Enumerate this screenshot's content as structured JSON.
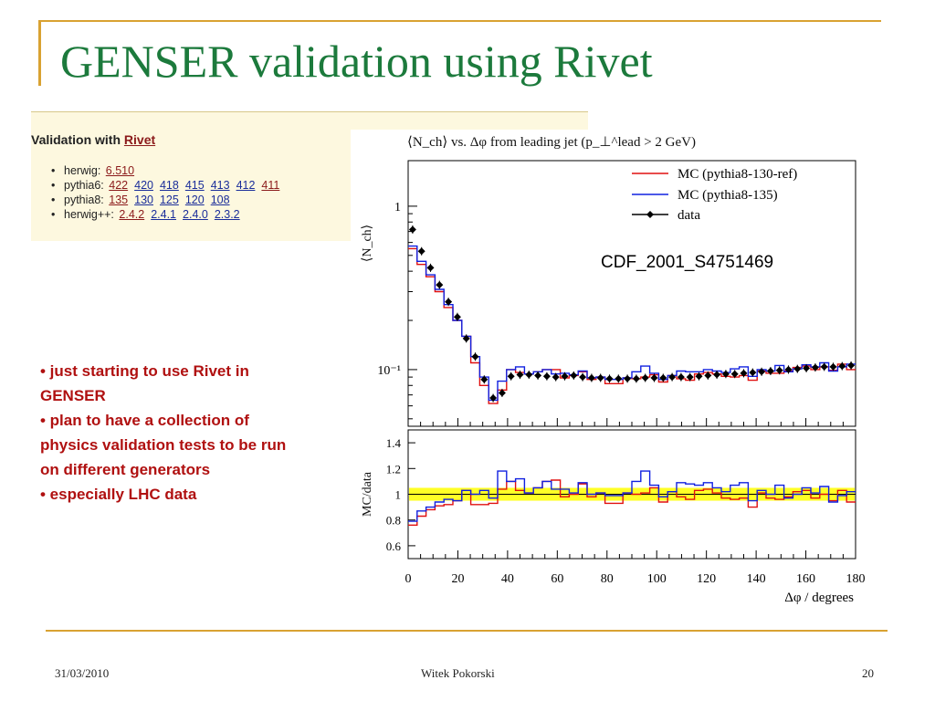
{
  "slide": {
    "title": "GENSER validation using Rivet",
    "accent_color": "#d9a232",
    "title_color": "#1c7a3c"
  },
  "rivet_panel": {
    "heading_prefix": "Validation with ",
    "heading_link": "Rivet",
    "rows": [
      {
        "label": "herwig:",
        "versions": [
          {
            "v": "6.510",
            "visited": true
          }
        ]
      },
      {
        "label": "pythia6:",
        "versions": [
          {
            "v": "422",
            "visited": true
          },
          {
            "v": "420",
            "visited": false
          },
          {
            "v": "418",
            "visited": false
          },
          {
            "v": "415",
            "visited": false
          },
          {
            "v": "413",
            "visited": false
          },
          {
            "v": "412",
            "visited": false
          },
          {
            "v": "411",
            "visited": true
          }
        ]
      },
      {
        "label": "pythia8:",
        "versions": [
          {
            "v": "135",
            "visited": true
          },
          {
            "v": "130",
            "visited": false
          },
          {
            "v": "125",
            "visited": false
          },
          {
            "v": "120",
            "visited": false
          },
          {
            "v": "108",
            "visited": false
          }
        ]
      },
      {
        "label": "herwig++:",
        "versions": [
          {
            "v": "2.4.2",
            "visited": true
          },
          {
            "v": "2.4.1",
            "visited": false
          },
          {
            "v": "2.4.0",
            "visited": false
          },
          {
            "v": "2.3.2",
            "visited": false
          }
        ]
      }
    ]
  },
  "bullets": [
    "• just starting to use Rivet in",
    "GENSER",
    "• plan to have a collection of",
    "physics validation tests to be run",
    "on different generators",
    "• especially LHC data"
  ],
  "footer": {
    "date": "31/03/2010",
    "author": "Witek Pokorski",
    "page": "20"
  },
  "chart_data": {
    "type": "line",
    "title": "⟨N_ch⟩ vs. Δφ from leading jet (p_⊥^lead > 2 GeV)",
    "analysis_label": "CDF_2001_S4751469",
    "xlabel": "Δφ / degrees",
    "ylabel_main": "⟨N_ch⟩",
    "ylabel_ratio": "MC/data",
    "xlim": [
      0,
      180
    ],
    "ylim_main_log": [
      0.045,
      1.9
    ],
    "ylim_ratio": [
      0.5,
      1.5
    ],
    "log_y": true,
    "x_ticks": [
      0,
      20,
      40,
      60,
      80,
      100,
      120,
      140,
      160,
      180
    ],
    "y_ticks_main": [
      {
        "value": 1,
        "label": "1"
      },
      {
        "value": 0.1,
        "label": "10⁻¹"
      }
    ],
    "y_ticks_ratio": [
      "0.6",
      "0.8",
      "1",
      "1.2",
      "1.4"
    ],
    "legend_position": "top-right",
    "legend": [
      "MC (pythia8-130-ref)",
      "MC (pythia8-135)",
      "data"
    ],
    "colors": {
      "ref": "#e01010",
      "new": "#1020e0",
      "data": "#000000",
      "band": "#ffff00"
    },
    "x_centers": [
      1.8,
      5.4,
      9.0,
      12.6,
      16.2,
      19.8,
      23.4,
      27.0,
      30.6,
      34.2,
      37.8,
      41.4,
      45.0,
      48.6,
      52.2,
      55.8,
      59.4,
      63.0,
      66.6,
      70.2,
      73.8,
      77.4,
      81.0,
      84.6,
      88.2,
      91.8,
      95.4,
      99.0,
      102.6,
      106.2,
      109.8,
      113.4,
      117.0,
      120.6,
      124.2,
      127.8,
      131.4,
      135.0,
      138.6,
      142.2,
      145.8,
      149.4,
      153.0,
      156.6,
      160.2,
      163.8,
      167.4,
      171.0,
      174.6,
      178.2
    ],
    "bin_width": 3.6,
    "series": [
      {
        "name": "data",
        "values": [
          0.72,
          0.53,
          0.42,
          0.33,
          0.26,
          0.21,
          0.155,
          0.12,
          0.087,
          0.067,
          0.072,
          0.091,
          0.093,
          0.093,
          0.092,
          0.091,
          0.09,
          0.091,
          0.092,
          0.09,
          0.089,
          0.089,
          0.088,
          0.088,
          0.088,
          0.088,
          0.089,
          0.089,
          0.089,
          0.09,
          0.09,
          0.09,
          0.091,
          0.092,
          0.093,
          0.094,
          0.094,
          0.095,
          0.096,
          0.097,
          0.098,
          0.099,
          0.1,
          0.101,
          0.102,
          0.103,
          0.104,
          0.104,
          0.105,
          0.106
        ]
      },
      {
        "name": "MC (pythia8-130-ref)",
        "values": [
          0.55,
          0.44,
          0.37,
          0.3,
          0.24,
          0.2,
          0.16,
          0.11,
          0.08,
          0.062,
          0.075,
          0.1,
          0.096,
          0.094,
          0.097,
          0.1,
          0.1,
          0.089,
          0.092,
          0.097,
          0.087,
          0.09,
          0.082,
          0.082,
          0.089,
          0.088,
          0.09,
          0.093,
          0.084,
          0.092,
          0.088,
          0.086,
          0.094,
          0.096,
          0.094,
          0.091,
          0.09,
          0.092,
          0.086,
          0.098,
          0.095,
          0.095,
          0.098,
          0.103,
          0.105,
          0.1,
          0.104,
          0.099,
          0.108,
          0.1
        ]
      },
      {
        "name": "MC (pythia8-135)",
        "values": [
          0.57,
          0.46,
          0.38,
          0.31,
          0.25,
          0.2,
          0.16,
          0.12,
          0.09,
          0.065,
          0.085,
          0.1,
          0.104,
          0.094,
          0.097,
          0.1,
          0.094,
          0.095,
          0.093,
          0.098,
          0.089,
          0.09,
          0.087,
          0.087,
          0.089,
          0.097,
          0.105,
          0.095,
          0.087,
          0.092,
          0.098,
          0.097,
          0.097,
          0.1,
          0.098,
          0.096,
          0.101,
          0.104,
          0.091,
          0.1,
          0.098,
          0.106,
          0.097,
          0.101,
          0.107,
          0.104,
          0.11,
          0.098,
          0.104,
          0.108
        ]
      }
    ],
    "ratio_series": [
      {
        "name": "MC (pythia8-130-ref)",
        "values": [
          0.76,
          0.83,
          0.88,
          0.91,
          0.92,
          0.95,
          1.03,
          0.92,
          0.92,
          0.93,
          1.04,
          1.1,
          1.03,
          1.01,
          1.05,
          1.1,
          1.11,
          0.98,
          1.0,
          1.08,
          0.98,
          1.01,
          0.93,
          0.93,
          1.01,
          1.0,
          1.01,
          1.05,
          0.94,
          1.02,
          0.98,
          0.96,
          1.03,
          1.04,
          1.01,
          0.97,
          0.96,
          0.97,
          0.9,
          1.01,
          0.97,
          0.96,
          0.98,
          1.02,
          1.03,
          0.97,
          1.0,
          0.95,
          1.03,
          0.94
        ]
      },
      {
        "name": "MC (pythia8-135)",
        "values": [
          0.79,
          0.87,
          0.9,
          0.94,
          0.96,
          0.95,
          1.03,
          1.0,
          1.03,
          0.97,
          1.18,
          1.1,
          1.12,
          1.01,
          1.05,
          1.1,
          1.04,
          1.04,
          1.01,
          1.09,
          1.0,
          1.01,
          0.99,
          0.99,
          1.01,
          1.1,
          1.18,
          1.07,
          0.98,
          1.02,
          1.09,
          1.08,
          1.07,
          1.09,
          1.05,
          1.02,
          1.07,
          1.09,
          0.95,
          1.03,
          1.0,
          1.07,
          0.97,
          1.0,
          1.05,
          1.01,
          1.06,
          0.94,
          0.99,
          1.02
        ]
      }
    ]
  }
}
